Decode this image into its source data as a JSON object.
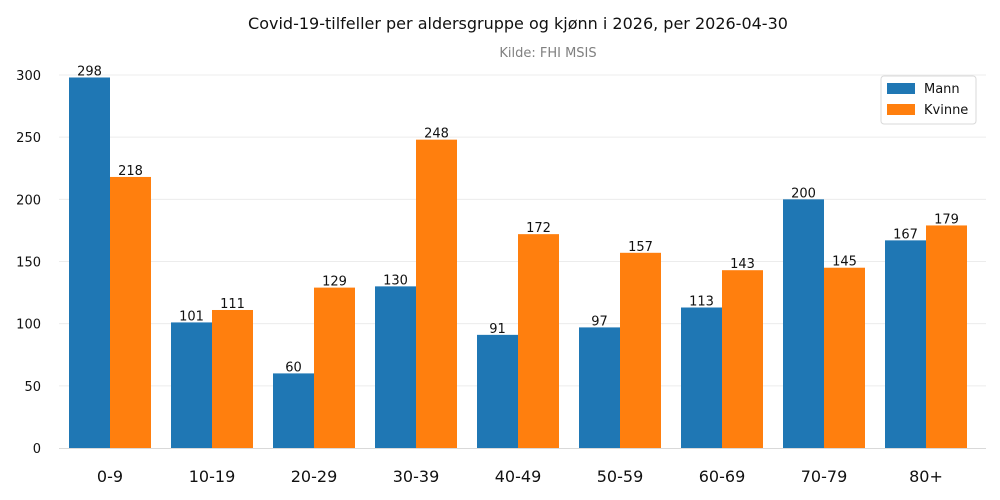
{
  "chart_data": {
    "type": "bar",
    "title": "Covid-19-tilfeller per aldersgruppe og kjønn i 2026, per 2026-04-30",
    "subtitle": "Kilde: FHI MSIS",
    "categories": [
      "0-9",
      "10-19",
      "20-29",
      "30-39",
      "40-49",
      "50-59",
      "60-69",
      "70-79",
      "80+"
    ],
    "series": [
      {
        "name": "Mann",
        "values": [
          298,
          101,
          60,
          130,
          91,
          97,
          113,
          200,
          167
        ],
        "color": "#1f77b4"
      },
      {
        "name": "Kvinne",
        "values": [
          218,
          111,
          129,
          248,
          172,
          157,
          143,
          145,
          179
        ],
        "color": "#ff7f0e"
      }
    ],
    "y_ticks": [
      0,
      50,
      100,
      150,
      200,
      250,
      300
    ],
    "ylim": [
      0,
      300
    ],
    "grid": true,
    "legend_position": "top-right",
    "xlabel": "",
    "ylabel": ""
  }
}
